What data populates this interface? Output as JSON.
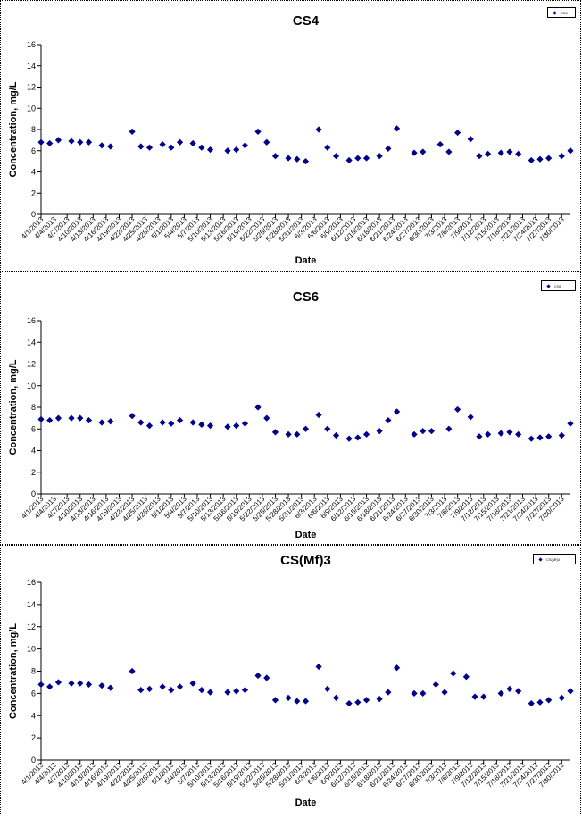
{
  "x_ticks": [
    "4/1/2013",
    "4/4/2013",
    "4/7/2013",
    "4/10/2013",
    "4/13/2013",
    "4/16/2013",
    "4/19/2013",
    "4/22/2013",
    "4/25/2013",
    "4/28/2013",
    "5/1/2013",
    "5/4/2013",
    "5/7/2013",
    "5/10/2013",
    "5/13/2013",
    "5/16/2013",
    "5/19/2013",
    "5/22/2013",
    "5/25/2013",
    "5/28/2013",
    "5/31/2013",
    "6/3/2013",
    "6/6/2013",
    "6/9/2013",
    "6/12/2013",
    "6/15/2013",
    "6/18/2013",
    "6/21/2013",
    "6/24/2013",
    "6/27/2013",
    "6/30/2013",
    "7/3/2013",
    "7/6/2013",
    "7/9/2013",
    "7/12/2013",
    "7/15/2013",
    "7/18/2013",
    "7/21/2013",
    "7/24/2013",
    "7/27/2013",
    "7/30/2013"
  ],
  "chart_data": [
    {
      "type": "scatter",
      "title": "CS4",
      "xlabel": "Date",
      "ylabel": "Concentration, mg/L",
      "legend": "CS4",
      "legend_position": "top-right",
      "marker_color": "#00008B",
      "ylim": [
        0,
        16
      ],
      "yticks": [
        0,
        2,
        4,
        6,
        8,
        10,
        12,
        14,
        16
      ],
      "xlim": [
        "4/1/2013",
        "7/31/2013"
      ],
      "grid": false,
      "points": [
        [
          "4/1/2013",
          6.8
        ],
        [
          "4/3/2013",
          6.7
        ],
        [
          "4/5/2013",
          7.0
        ],
        [
          "4/8/2013",
          6.9
        ],
        [
          "4/10/2013",
          6.8
        ],
        [
          "4/12/2013",
          6.8
        ],
        [
          "4/15/2013",
          6.5
        ],
        [
          "4/17/2013",
          6.4
        ],
        [
          "4/22/2013",
          7.8
        ],
        [
          "4/24/2013",
          6.4
        ],
        [
          "4/26/2013",
          6.3
        ],
        [
          "4/29/2013",
          6.6
        ],
        [
          "5/1/2013",
          6.3
        ],
        [
          "5/3/2013",
          6.8
        ],
        [
          "5/6/2013",
          6.7
        ],
        [
          "5/8/2013",
          6.3
        ],
        [
          "5/10/2013",
          6.1
        ],
        [
          "5/14/2013",
          6.0
        ],
        [
          "5/16/2013",
          6.1
        ],
        [
          "5/18/2013",
          6.5
        ],
        [
          "5/21/2013",
          7.8
        ],
        [
          "5/23/2013",
          6.8
        ],
        [
          "5/25/2013",
          5.5
        ],
        [
          "5/28/2013",
          5.3
        ],
        [
          "5/30/2013",
          5.2
        ],
        [
          "6/1/2013",
          5.0
        ],
        [
          "6/4/2013",
          8.0
        ],
        [
          "6/6/2013",
          6.3
        ],
        [
          "6/8/2013",
          5.5
        ],
        [
          "6/11/2013",
          5.1
        ],
        [
          "6/13/2013",
          5.3
        ],
        [
          "6/15/2013",
          5.3
        ],
        [
          "6/18/2013",
          5.5
        ],
        [
          "6/20/2013",
          6.2
        ],
        [
          "6/22/2013",
          8.1
        ],
        [
          "6/26/2013",
          5.8
        ],
        [
          "6/28/2013",
          5.9
        ],
        [
          "7/2/2013",
          6.6
        ],
        [
          "7/4/2013",
          5.9
        ],
        [
          "7/6/2013",
          7.7
        ],
        [
          "7/9/2013",
          7.1
        ],
        [
          "7/11/2013",
          5.5
        ],
        [
          "7/13/2013",
          5.7
        ],
        [
          "7/16/2013",
          5.8
        ],
        [
          "7/18/2013",
          5.9
        ],
        [
          "7/20/2013",
          5.7
        ],
        [
          "7/23/2013",
          5.1
        ],
        [
          "7/25/2013",
          5.2
        ],
        [
          "7/27/2013",
          5.3
        ],
        [
          "7/30/2013",
          5.5
        ],
        [
          "8/1/2013",
          6.0
        ]
      ]
    },
    {
      "type": "scatter",
      "title": "CS6",
      "xlabel": "Date",
      "ylabel": "Concentration, mg/L",
      "legend": "CS6",
      "legend_position": "top-right",
      "marker_color": "#00008B",
      "ylim": [
        0,
        16
      ],
      "yticks": [
        0,
        2,
        4,
        6,
        8,
        10,
        12,
        14,
        16
      ],
      "xlim": [
        "4/1/2013",
        "7/31/2013"
      ],
      "grid": false,
      "points": [
        [
          "4/1/2013",
          6.9
        ],
        [
          "4/3/2013",
          6.8
        ],
        [
          "4/5/2013",
          7.0
        ],
        [
          "4/8/2013",
          7.0
        ],
        [
          "4/10/2013",
          7.0
        ],
        [
          "4/12/2013",
          6.8
        ],
        [
          "4/15/2013",
          6.6
        ],
        [
          "4/17/2013",
          6.7
        ],
        [
          "4/22/2013",
          7.2
        ],
        [
          "4/24/2013",
          6.6
        ],
        [
          "4/26/2013",
          6.3
        ],
        [
          "4/29/2013",
          6.6
        ],
        [
          "5/1/2013",
          6.5
        ],
        [
          "5/3/2013",
          6.8
        ],
        [
          "5/6/2013",
          6.6
        ],
        [
          "5/8/2013",
          6.4
        ],
        [
          "5/10/2013",
          6.3
        ],
        [
          "5/14/2013",
          6.2
        ],
        [
          "5/16/2013",
          6.3
        ],
        [
          "5/18/2013",
          6.5
        ],
        [
          "5/21/2013",
          8.0
        ],
        [
          "5/23/2013",
          7.0
        ],
        [
          "5/25/2013",
          5.7
        ],
        [
          "5/28/2013",
          5.5
        ],
        [
          "5/30/2013",
          5.5
        ],
        [
          "6/1/2013",
          6.0
        ],
        [
          "6/4/2013",
          7.3
        ],
        [
          "6/6/2013",
          6.0
        ],
        [
          "6/8/2013",
          5.4
        ],
        [
          "6/11/2013",
          5.1
        ],
        [
          "6/13/2013",
          5.2
        ],
        [
          "6/15/2013",
          5.5
        ],
        [
          "6/18/2013",
          5.8
        ],
        [
          "6/20/2013",
          6.8
        ],
        [
          "6/22/2013",
          7.6
        ],
        [
          "6/26/2013",
          5.5
        ],
        [
          "6/28/2013",
          5.8
        ],
        [
          "6/30/2013",
          5.8
        ],
        [
          "7/4/2013",
          6.0
        ],
        [
          "7/6/2013",
          7.8
        ],
        [
          "7/9/2013",
          7.1
        ],
        [
          "7/11/2013",
          5.3
        ],
        [
          "7/13/2013",
          5.5
        ],
        [
          "7/16/2013",
          5.6
        ],
        [
          "7/18/2013",
          5.7
        ],
        [
          "7/20/2013",
          5.5
        ],
        [
          "7/23/2013",
          5.1
        ],
        [
          "7/25/2013",
          5.2
        ],
        [
          "7/27/2013",
          5.3
        ],
        [
          "7/30/2013",
          5.4
        ],
        [
          "8/1/2013",
          6.5
        ]
      ]
    },
    {
      "type": "scatter",
      "title": "CS(Mf)3",
      "xlabel": "Date",
      "ylabel": "Concentration, mg/L",
      "legend": "CS(Mf)3",
      "legend_position": "top-right",
      "marker_color": "#00008B",
      "ylim": [
        0,
        16
      ],
      "yticks": [
        0,
        2,
        4,
        6,
        8,
        10,
        12,
        14,
        16
      ],
      "xlim": [
        "4/1/2013",
        "7/31/2013"
      ],
      "grid": false,
      "points": [
        [
          "4/1/2013",
          6.8
        ],
        [
          "4/3/2013",
          6.6
        ],
        [
          "4/5/2013",
          7.0
        ],
        [
          "4/8/2013",
          6.9
        ],
        [
          "4/10/2013",
          6.9
        ],
        [
          "4/12/2013",
          6.8
        ],
        [
          "4/15/2013",
          6.7
        ],
        [
          "4/17/2013",
          6.5
        ],
        [
          "4/22/2013",
          8.0
        ],
        [
          "4/24/2013",
          6.3
        ],
        [
          "4/26/2013",
          6.4
        ],
        [
          "4/29/2013",
          6.6
        ],
        [
          "5/1/2013",
          6.3
        ],
        [
          "5/3/2013",
          6.6
        ],
        [
          "5/6/2013",
          6.9
        ],
        [
          "5/8/2013",
          6.3
        ],
        [
          "5/10/2013",
          6.1
        ],
        [
          "5/14/2013",
          6.1
        ],
        [
          "5/16/2013",
          6.2
        ],
        [
          "5/18/2013",
          6.3
        ],
        [
          "5/21/2013",
          7.6
        ],
        [
          "5/23/2013",
          7.4
        ],
        [
          "5/25/2013",
          5.4
        ],
        [
          "5/28/2013",
          5.6
        ],
        [
          "5/30/2013",
          5.3
        ],
        [
          "6/1/2013",
          5.3
        ],
        [
          "6/4/2013",
          8.4
        ],
        [
          "6/6/2013",
          6.4
        ],
        [
          "6/8/2013",
          5.6
        ],
        [
          "6/11/2013",
          5.1
        ],
        [
          "6/13/2013",
          5.2
        ],
        [
          "6/15/2013",
          5.4
        ],
        [
          "6/18/2013",
          5.5
        ],
        [
          "6/20/2013",
          6.1
        ],
        [
          "6/22/2013",
          8.3
        ],
        [
          "6/26/2013",
          6.0
        ],
        [
          "6/28/2013",
          6.0
        ],
        [
          "7/1/2013",
          6.8
        ],
        [
          "7/3/2013",
          6.1
        ],
        [
          "7/5/2013",
          7.8
        ],
        [
          "7/8/2013",
          7.5
        ],
        [
          "7/10/2013",
          5.7
        ],
        [
          "7/12/2013",
          5.7
        ],
        [
          "7/16/2013",
          6.0
        ],
        [
          "7/18/2013",
          6.4
        ],
        [
          "7/20/2013",
          6.2
        ],
        [
          "7/23/2013",
          5.1
        ],
        [
          "7/25/2013",
          5.2
        ],
        [
          "7/27/2013",
          5.4
        ],
        [
          "7/30/2013",
          5.6
        ],
        [
          "8/1/2013",
          6.2
        ]
      ]
    }
  ]
}
